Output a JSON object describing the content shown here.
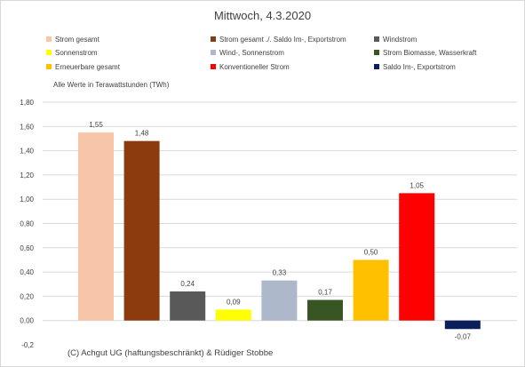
{
  "chart_data": {
    "type": "bar",
    "title": "Mittwoch, 4.3.2020",
    "note": "Alle Werte in Terawattstunden (TWh)",
    "copyright": "(C) Achgut UG (haftungsbeschränkt) & Rüdiger Stobbe",
    "ylim": [
      -0.2,
      1.8
    ],
    "yticks": [
      "1,80",
      "1,60",
      "1,40",
      "1,20",
      "1,00",
      "0,80",
      "0,60",
      "0,40",
      "0,20",
      "0,00",
      "-0,2"
    ],
    "ytick_values": [
      1.8,
      1.6,
      1.4,
      1.2,
      1.0,
      0.8,
      0.6,
      0.4,
      0.2,
      0.0,
      -0.2
    ],
    "grid": true,
    "legend_position": "top",
    "categories": [
      "Strom gesamt",
      "Strom gesamt ./. Saldo Im-, Exportstrom",
      "Windstrom",
      "Sonnenstrom",
      "Wind-, Sonnenstrom",
      "Strom Biomasse, Wasserkraft",
      "Erneuerbare gesamt",
      "Konventioneller Strom",
      "Saldo Im-, Exportstrom"
    ],
    "values": [
      1.55,
      1.48,
      0.24,
      0.09,
      0.33,
      0.17,
      0.5,
      1.05,
      -0.07
    ],
    "labels": [
      "1,55",
      "1,48",
      "0,24",
      "0,09",
      "0,33",
      "0,17",
      "0,50",
      "1,05",
      "-0,07"
    ],
    "colors": [
      "#f7c6a8",
      "#8b3b0e",
      "#595959",
      "#ffff00",
      "#adb9ca",
      "#375623",
      "#ffc000",
      "#ff0000",
      "#0b1f5c"
    ]
  }
}
